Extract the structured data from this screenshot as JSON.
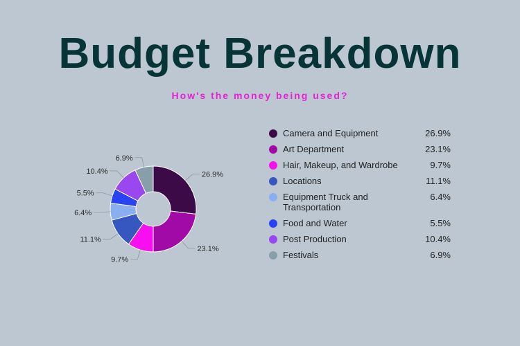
{
  "title": "Budget Breakdown",
  "subtitle": "How's the money being used?",
  "chart_data": {
    "type": "pie",
    "style": "donut",
    "legend_position": "right",
    "categories": [
      "Camera and Equipment",
      "Art Department",
      "Hair, Makeup, and Wardrobe",
      "Locations",
      "Equipment Truck and Transportation",
      "Food and Water",
      "Post Production",
      "Festivals"
    ],
    "values": [
      26.9,
      23.1,
      9.7,
      11.1,
      6.4,
      5.5,
      10.4,
      6.9
    ],
    "labels": [
      "26.9%",
      "23.1%",
      "9.7%",
      "11.1%",
      "6.4%",
      "5.5%",
      "10.4%",
      "6.9%"
    ],
    "colors": [
      "#3c0b47",
      "#a10aa6",
      "#f70ff0",
      "#3656c0",
      "#8aaff0",
      "#2a43f2",
      "#9b47ef",
      "#889ea8"
    ]
  }
}
